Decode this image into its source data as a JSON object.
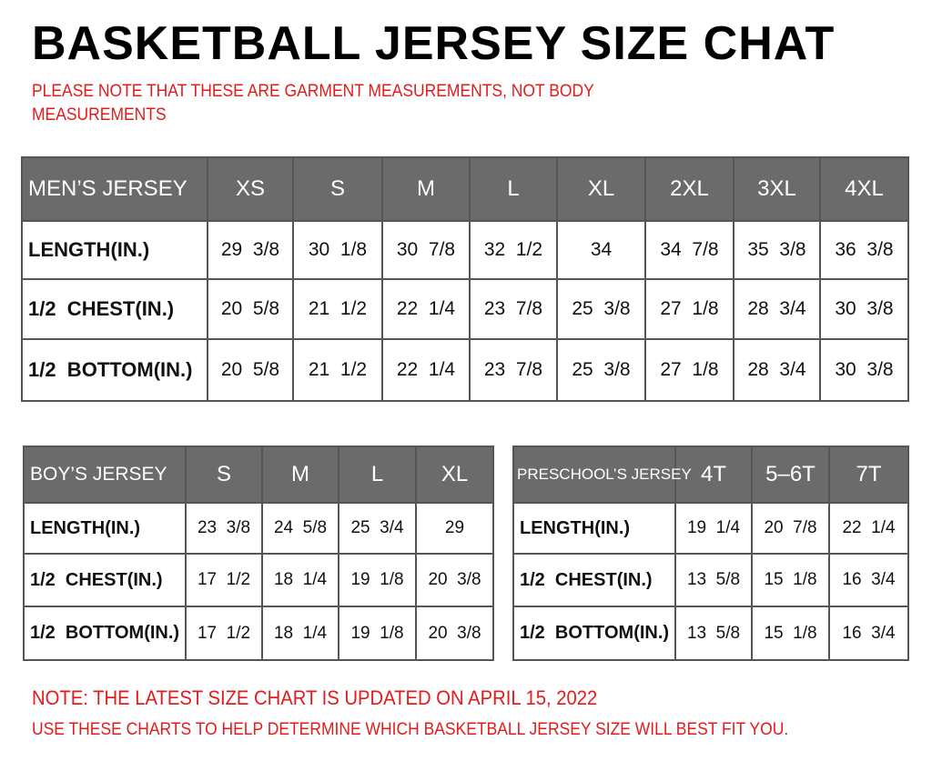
{
  "title": "BASKETBALL JERSEY SIZE CHAT",
  "top_note": "PLEASE NOTE THAT THESE ARE GARMENT MEASUREMENTS, NOT BODY MEASUREMENTS",
  "header_color": "#6b6b6b",
  "note_color": "#e21b1b",
  "mens": {
    "header": [
      "MEN’S JERSEY",
      "XS",
      "S",
      "M",
      "L",
      "XL",
      "2XL",
      "3XL",
      "4XL"
    ],
    "rows": [
      [
        "LENGTH(IN.)",
        "29  3/8",
        "30  1/8",
        "30  7/8",
        "32  1/2",
        "34",
        "34  7/8",
        "35  3/8",
        "36  3/8"
      ],
      [
        "1/2  CHEST(IN.)",
        "20  5/8",
        "21  1/2",
        "22  1/4",
        "23  7/8",
        "25  3/8",
        "27  1/8",
        "28  3/4",
        "30  3/8"
      ],
      [
        "1/2  BOTTOM(IN.)",
        "20  5/8",
        "21  1/2",
        "22  1/4",
        "23  7/8",
        "25  3/8",
        "27  1/8",
        "28  3/4",
        "30  3/8"
      ]
    ]
  },
  "boys": {
    "header": [
      "BOY’S JERSEY",
      "S",
      "M",
      "L",
      "XL"
    ],
    "rows": [
      [
        "LENGTH(IN.)",
        "23  3/8",
        "24  5/8",
        "25  3/4",
        "29"
      ],
      [
        "1/2  CHEST(IN.)",
        "17  1/2",
        "18  1/4",
        "19  1/8",
        "20  3/8"
      ],
      [
        "1/2  BOTTOM(IN.)",
        "17  1/2",
        "18  1/4",
        "19  1/8",
        "20  3/8"
      ]
    ]
  },
  "preschool": {
    "header": [
      "PRESCHOOL’S JERSEY",
      "4T",
      "5–6T",
      "7T"
    ],
    "rows": [
      [
        "LENGTH(IN.)",
        "19  1/4",
        "20  7/8",
        "22  1/4"
      ],
      [
        "1/2  CHEST(IN.)",
        "13  5/8",
        "15  1/8",
        "16  3/4"
      ],
      [
        "1/2  BOTTOM(IN.)",
        "13  5/8",
        "15  1/8",
        "16  3/4"
      ]
    ]
  },
  "bottom_notes": [
    "NOTE: THE LATEST SIZE CHART IS UPDATED ON APRIL 15, 2022",
    "USE THESE CHARTS TO HELP DETERMINE WHICH  BASKETBALL JERSEY  SIZE WILL BEST FIT YOU."
  ]
}
